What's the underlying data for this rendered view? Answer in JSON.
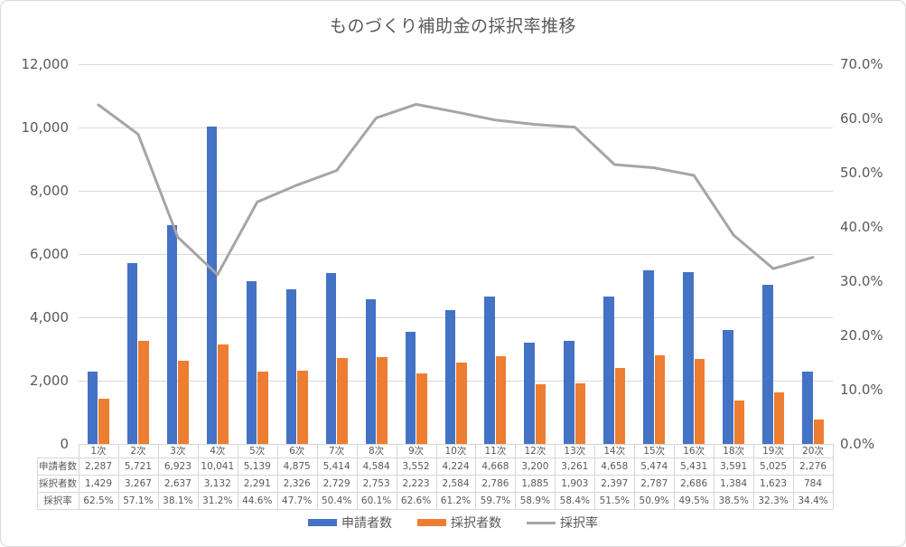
{
  "chart_data": {
    "type": "bar",
    "combo": "bar+line",
    "title": "ものづくり補助金の採択率推移",
    "categories": [
      "1次",
      "2次",
      "3次",
      "4次",
      "5次",
      "6次",
      "7次",
      "8次",
      "9次",
      "10次",
      "11次",
      "12次",
      "13次",
      "14次",
      "15次",
      "16次",
      "18次",
      "19次",
      "20次"
    ],
    "series": [
      {
        "key": "applicants",
        "name": "申請者数",
        "type": "bar",
        "axis": "left",
        "color": "#4472C4",
        "values": [
          2287,
          5721,
          6923,
          10041,
          5139,
          4875,
          5414,
          4584,
          3552,
          4224,
          4668,
          3200,
          3261,
          4658,
          5474,
          5431,
          3591,
          5025,
          2276
        ],
        "labels": [
          "2,287",
          "5,721",
          "6,923",
          "10,041",
          "5,139",
          "4,875",
          "5,414",
          "4,584",
          "3,552",
          "4,224",
          "4,668",
          "3,200",
          "3,261",
          "4,658",
          "5,474",
          "5,431",
          "3,591",
          "5,025",
          "2,276"
        ]
      },
      {
        "key": "adopted",
        "name": "採択者数",
        "type": "bar",
        "axis": "left",
        "color": "#ED7D31",
        "values": [
          1429,
          3267,
          2637,
          3132,
          2291,
          2326,
          2729,
          2753,
          2223,
          2584,
          2786,
          1885,
          1903,
          2397,
          2787,
          2686,
          1384,
          1623,
          784
        ],
        "labels": [
          "1,429",
          "3,267",
          "2,637",
          "3,132",
          "2,291",
          "2,326",
          "2,729",
          "2,753",
          "2,223",
          "2,584",
          "2,786",
          "1,885",
          "1,903",
          "2,397",
          "2,787",
          "2,686",
          "1,384",
          "1,623",
          "784"
        ]
      },
      {
        "key": "rate",
        "name": "採択率",
        "type": "line",
        "axis": "right",
        "color": "#A5A5A5",
        "values": [
          62.5,
          57.1,
          38.1,
          31.2,
          44.6,
          47.7,
          50.4,
          60.1,
          62.6,
          61.2,
          59.7,
          58.9,
          58.4,
          51.5,
          50.9,
          49.5,
          38.5,
          32.3,
          34.4
        ],
        "labels": [
          "62.5%",
          "57.1%",
          "38.1%",
          "31.2%",
          "44.6%",
          "47.7%",
          "50.4%",
          "60.1%",
          "62.6%",
          "61.2%",
          "59.7%",
          "58.9%",
          "58.4%",
          "51.5%",
          "50.9%",
          "49.5%",
          "38.5%",
          "32.3%",
          "34.4%"
        ]
      }
    ],
    "axes": {
      "left": {
        "min": 0,
        "max": 12000,
        "step": 2000,
        "tick_labels": [
          "0",
          "2,000",
          "4,000",
          "6,000",
          "8,000",
          "10,000",
          "12,000"
        ]
      },
      "right": {
        "min": 0,
        "max": 70,
        "step": 10,
        "tick_labels": [
          "0.0%",
          "10.0%",
          "20.0%",
          "30.0%",
          "40.0%",
          "50.0%",
          "60.0%",
          "70.0%"
        ]
      }
    },
    "grid": true,
    "legend_position": "bottom",
    "data_table": {
      "row_headers": [
        "申請者数",
        "採択者数",
        "採択率"
      ]
    }
  },
  "colors": {
    "text": "#595959",
    "gridline": "#D9D9D9",
    "table_border": "#D6D6D6",
    "frame_border": "#D9D9D9"
  }
}
